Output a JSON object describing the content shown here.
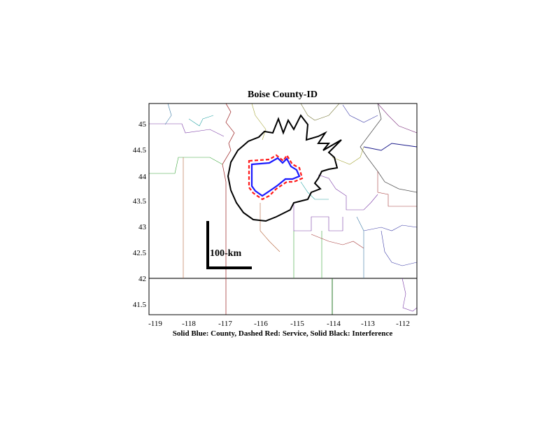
{
  "map": {
    "title": "Boise County-ID",
    "caption": "Solid Blue: County, Dashed Red: Service, Solid Black: Interference",
    "scale_label": "100-km",
    "x_ticks": [
      "-119",
      "-118",
      "-117",
      "-116",
      "-115",
      "-114",
      "-113",
      "-112"
    ],
    "y_ticks": [
      "45",
      "44.5",
      "44",
      "43.5",
      "43",
      "42.5",
      "42",
      "41.5"
    ],
    "xlim": [
      -119.2,
      -111.6
    ],
    "ylim": [
      41.25,
      45.4
    ],
    "colors": {
      "county": "#1a1aff",
      "service": "#ff1a1a",
      "interference": "#000000",
      "frame": "#000000"
    }
  }
}
